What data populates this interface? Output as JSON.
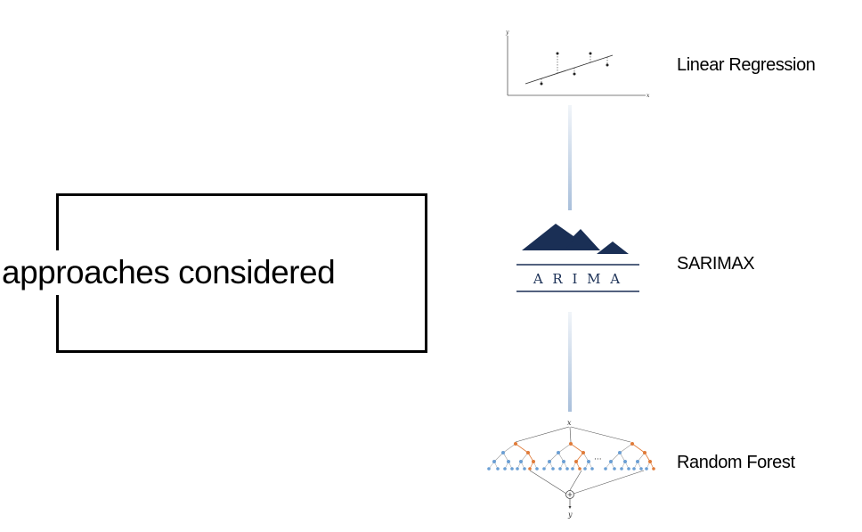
{
  "title": "approaches considered",
  "approaches": [
    {
      "label": "Linear Regression",
      "icon": "linear-regression-plot-icon"
    },
    {
      "label": "SARIMAX",
      "icon": "arima-logo-icon",
      "logo_text": "A R I M A"
    },
    {
      "label": "Random Forest",
      "icon": "random-forest-diagram-icon"
    }
  ],
  "colors": {
    "box_border": "#000000",
    "connector": "#a0b9d7",
    "arima_navy": "#1a2f55",
    "tree_blue": "#6b9fd4",
    "tree_orange": "#e07b39"
  }
}
